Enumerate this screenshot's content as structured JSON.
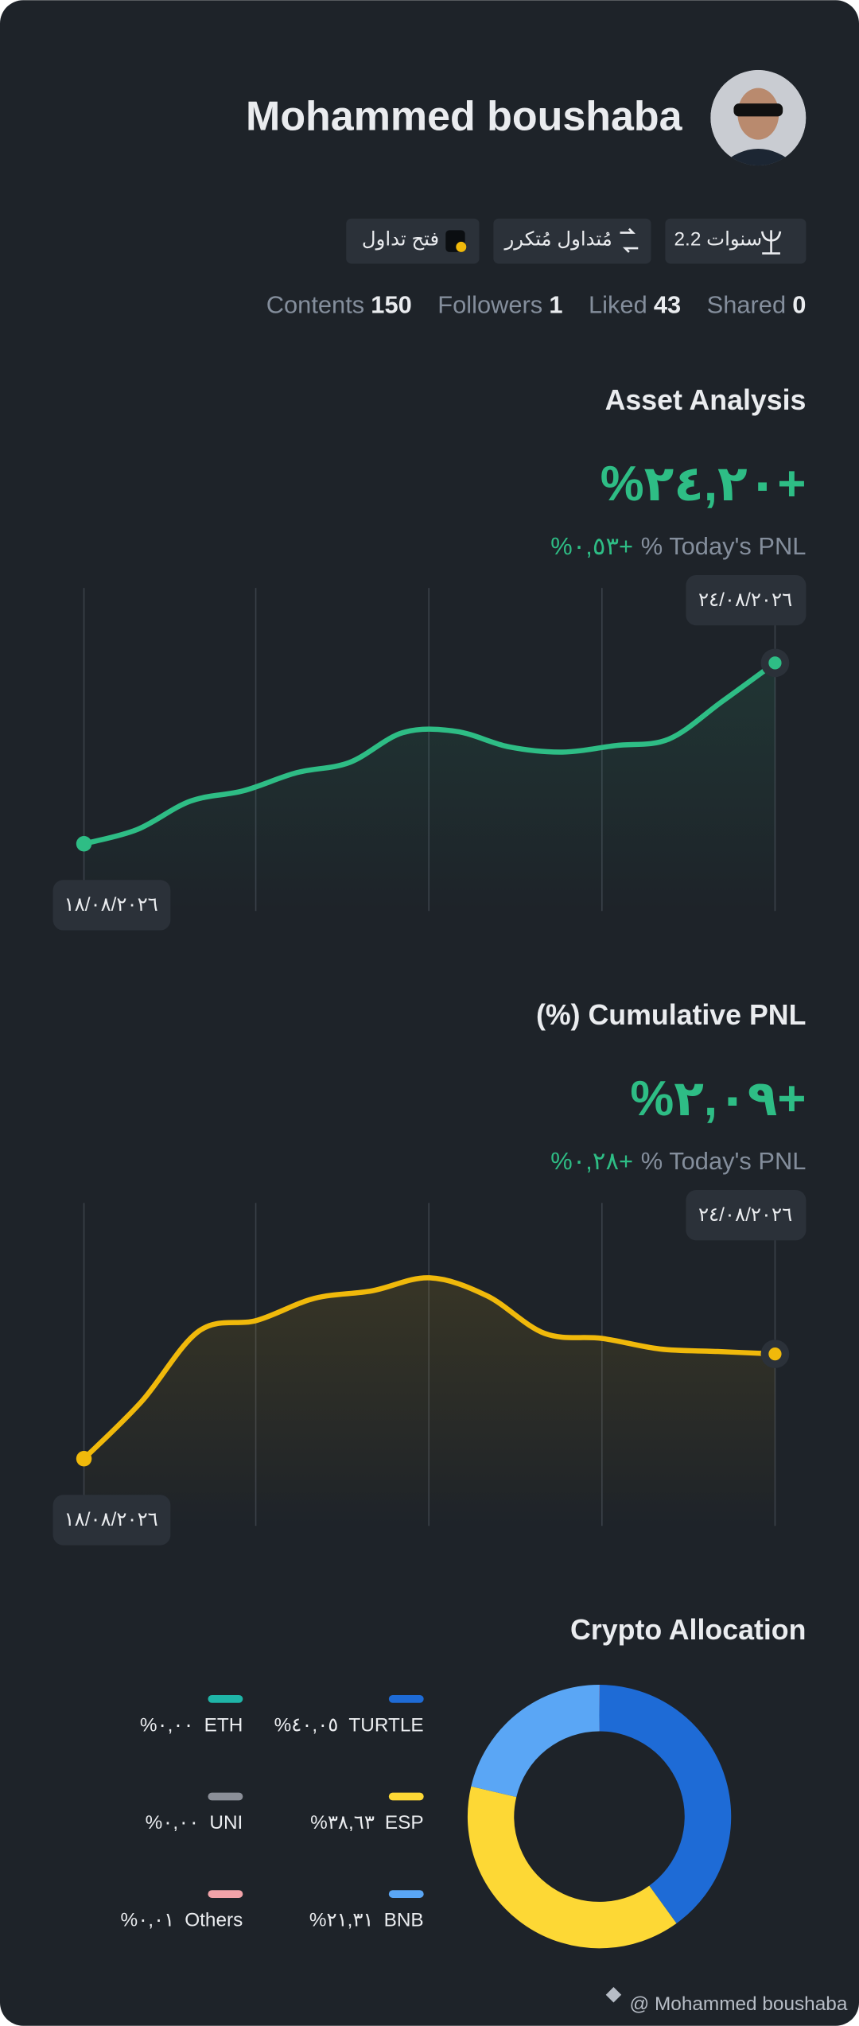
{
  "profile": {
    "name": "Mohammed boushaba",
    "badges": [
      "2.2 سنوات",
      "مُتداول مُتكرر",
      "فتح تداول"
    ]
  },
  "stats": [
    {
      "label": "Contents",
      "value": 150
    },
    {
      "label": "Followers",
      "value": 1
    },
    {
      "label": "Liked",
      "value": 43
    },
    {
      "label": "Shared",
      "value": 0
    }
  ],
  "chart_data": [
    {
      "type": "line",
      "title": "Asset Analysis",
      "headline": "%٢٤,٢٠+",
      "today_pnl": "%٠,٥٣+",
      "today_pnl_label": "% Today's PNL",
      "x": [
        "١٨/٠٨/٢٠٢٦",
        null,
        null,
        null,
        null,
        null,
        null,
        null,
        null,
        null,
        null,
        null,
        null,
        "٢٤/٠٨/٢٠٢٦"
      ],
      "series": [
        {
          "color": "#2ebd85",
          "values": [
            0,
            1.9,
            5.7,
            7.09,
            9.51,
            10.89,
            14.87,
            15.04,
            12.96,
            12.27,
            13.14,
            14.0,
            19.01,
            24.2
          ]
        }
      ]
    },
    {
      "type": "line",
      "title": "(%) Cumulative PNL",
      "headline": "%٢,٠٩+",
      "today_pnl": "%٠,٢٨+",
      "today_pnl_label": "% Today's PNL",
      "x": [
        "١٨/٠٨/٢٠٢٦",
        null,
        null,
        null,
        null,
        null,
        null,
        null,
        null,
        null,
        null,
        null,
        "٢٤/٠٨/٢٠٢٦"
      ],
      "series": [
        {
          "color": "#f0b90b",
          "values": [
            0,
            1.14,
            2.55,
            2.76,
            3.2,
            3.35,
            3.61,
            3.25,
            2.5,
            2.4,
            2.19,
            2.14,
            2.09
          ]
        }
      ]
    },
    {
      "type": "pie",
      "donut": true,
      "title": "Crypto Allocation",
      "categories": [
        "TURTLE",
        "ESP",
        "BNB",
        "ETH",
        "UNI",
        "Others"
      ],
      "values": [
        40.05,
        38.63,
        21.31,
        0,
        0,
        0.01
      ],
      "value_labels": [
        "%٤٠,٠٥",
        "%٣٨,٦٣",
        "%٢١,٣١",
        "%٠,٠٠",
        "%٠,٠٠",
        "%٠,٠١"
      ],
      "colors": [
        "#1e6bd6",
        "#fdd835",
        "#5aa6f5",
        "#1fb5a8",
        "#8b8f98",
        "#f2a3a9"
      ]
    }
  ],
  "footer": "@ Mohammed boushaba"
}
